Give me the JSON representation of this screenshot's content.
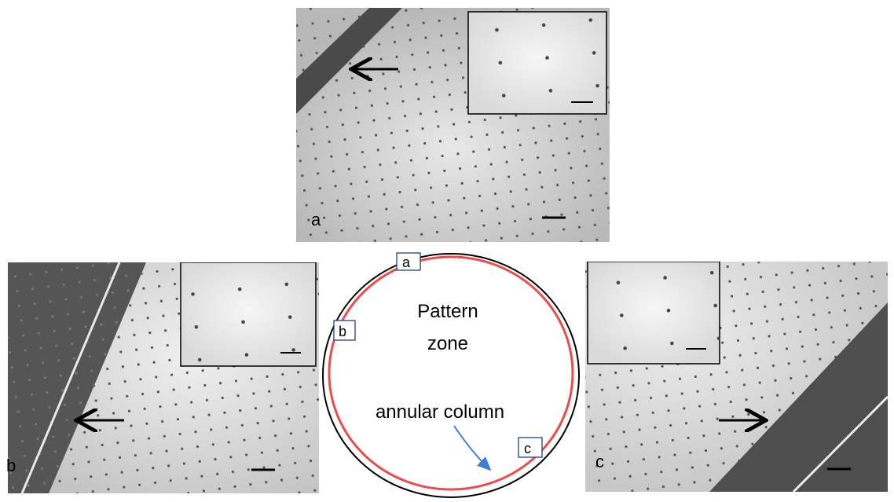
{
  "panels": [
    {
      "label": "a"
    },
    {
      "label": "b"
    },
    {
      "label": "c"
    }
  ],
  "diagram": {
    "box_labels": [
      "a",
      "b",
      "c"
    ],
    "zone_label": [
      "Pattern",
      "zone"
    ],
    "column_label": "annular column"
  }
}
